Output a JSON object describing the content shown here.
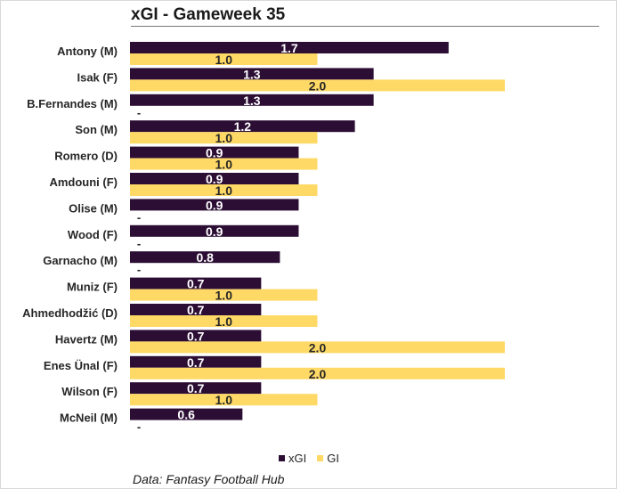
{
  "chart_data": {
    "type": "bar",
    "orientation": "horizontal",
    "title": "xGI - Gameweek 35",
    "source": "Data: Fantasy Football Hub",
    "categories": [
      "Antony (M)",
      "Isak (F)",
      "B.Fernandes (M)",
      "Son (M)",
      "Romero (D)",
      "Amdouni (F)",
      "Olise (M)",
      "Wood (F)",
      "Garnacho (M)",
      "Muniz (F)",
      "Ahmedhodžić (D)",
      "Havertz (M)",
      "Enes Ünal (F)",
      "Wilson (F)",
      "McNeil (M)"
    ],
    "series": [
      {
        "name": "xGI",
        "color": "#2c0e35",
        "values": [
          1.7,
          1.3,
          1.3,
          1.2,
          0.9,
          0.9,
          0.9,
          0.9,
          0.8,
          0.7,
          0.7,
          0.7,
          0.7,
          0.7,
          0.6
        ],
        "labels": [
          "1.7",
          "1.3",
          "1.3",
          "1.2",
          "0.9",
          "0.9",
          "0.9",
          "0.9",
          "0.8",
          "0.7",
          "0.7",
          "0.7",
          "0.7",
          "0.7",
          "0.6"
        ]
      },
      {
        "name": "GI",
        "color": "#ffd966",
        "values": [
          1.0,
          2.0,
          0,
          1.0,
          1.0,
          1.0,
          0,
          0,
          0,
          1.0,
          1.0,
          2.0,
          2.0,
          1.0,
          0
        ],
        "labels": [
          "1.0",
          "2.0",
          "-",
          "1.0",
          "1.0",
          "1.0",
          "-",
          "-",
          "-",
          "1.0",
          "1.0",
          "2.0",
          "2.0",
          "1.0",
          "-"
        ]
      }
    ],
    "xlim": [
      0,
      2.0
    ],
    "grid": false,
    "legend_position": "bottom"
  }
}
